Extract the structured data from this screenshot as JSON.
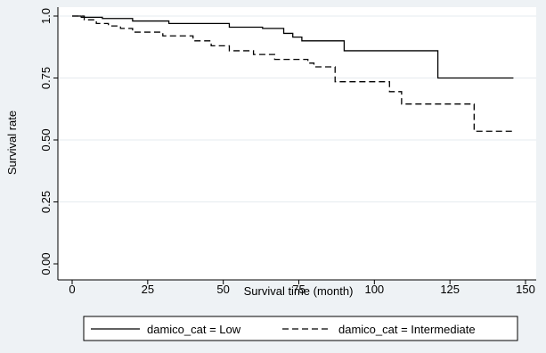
{
  "chart_data": {
    "type": "line",
    "title": "",
    "xlabel": "Survival time (month)",
    "ylabel": "Survival rate",
    "xlim": [
      0,
      150
    ],
    "ylim": [
      0,
      1
    ],
    "xticks": [
      0,
      25,
      50,
      75,
      100,
      125,
      150
    ],
    "yticks": [
      0,
      0.25,
      0.5,
      0.75,
      1
    ],
    "ytick_labels": [
      "0.00",
      "0.25",
      "0.50",
      "0.75",
      "1.0"
    ],
    "grid": "horizontal",
    "legend_position": "bottom",
    "colors": {
      "plot_background": "#ffffff",
      "outer_background": "#eef2f5",
      "grid": "#e6ebef",
      "line": "#000000"
    },
    "series": [
      {
        "name": "damico_cat = Low",
        "style": "solid",
        "x": [
          0,
          3,
          10,
          20,
          32,
          52,
          63,
          70,
          73,
          76,
          90,
          121,
          146
        ],
        "y": [
          1.0,
          0.995,
          0.99,
          0.98,
          0.97,
          0.955,
          0.95,
          0.93,
          0.915,
          0.9,
          0.86,
          0.75,
          0.75
        ]
      },
      {
        "name": "damico_cat = Intermediate",
        "style": "dashed",
        "x": [
          0,
          4,
          8,
          12,
          16,
          20,
          30,
          40,
          46,
          52,
          60,
          67,
          78,
          80,
          87,
          105,
          109,
          133,
          146
        ],
        "y": [
          1.0,
          0.985,
          0.97,
          0.96,
          0.95,
          0.935,
          0.92,
          0.9,
          0.88,
          0.86,
          0.845,
          0.825,
          0.81,
          0.795,
          0.735,
          0.695,
          0.645,
          0.535,
          0.535
        ]
      }
    ]
  }
}
